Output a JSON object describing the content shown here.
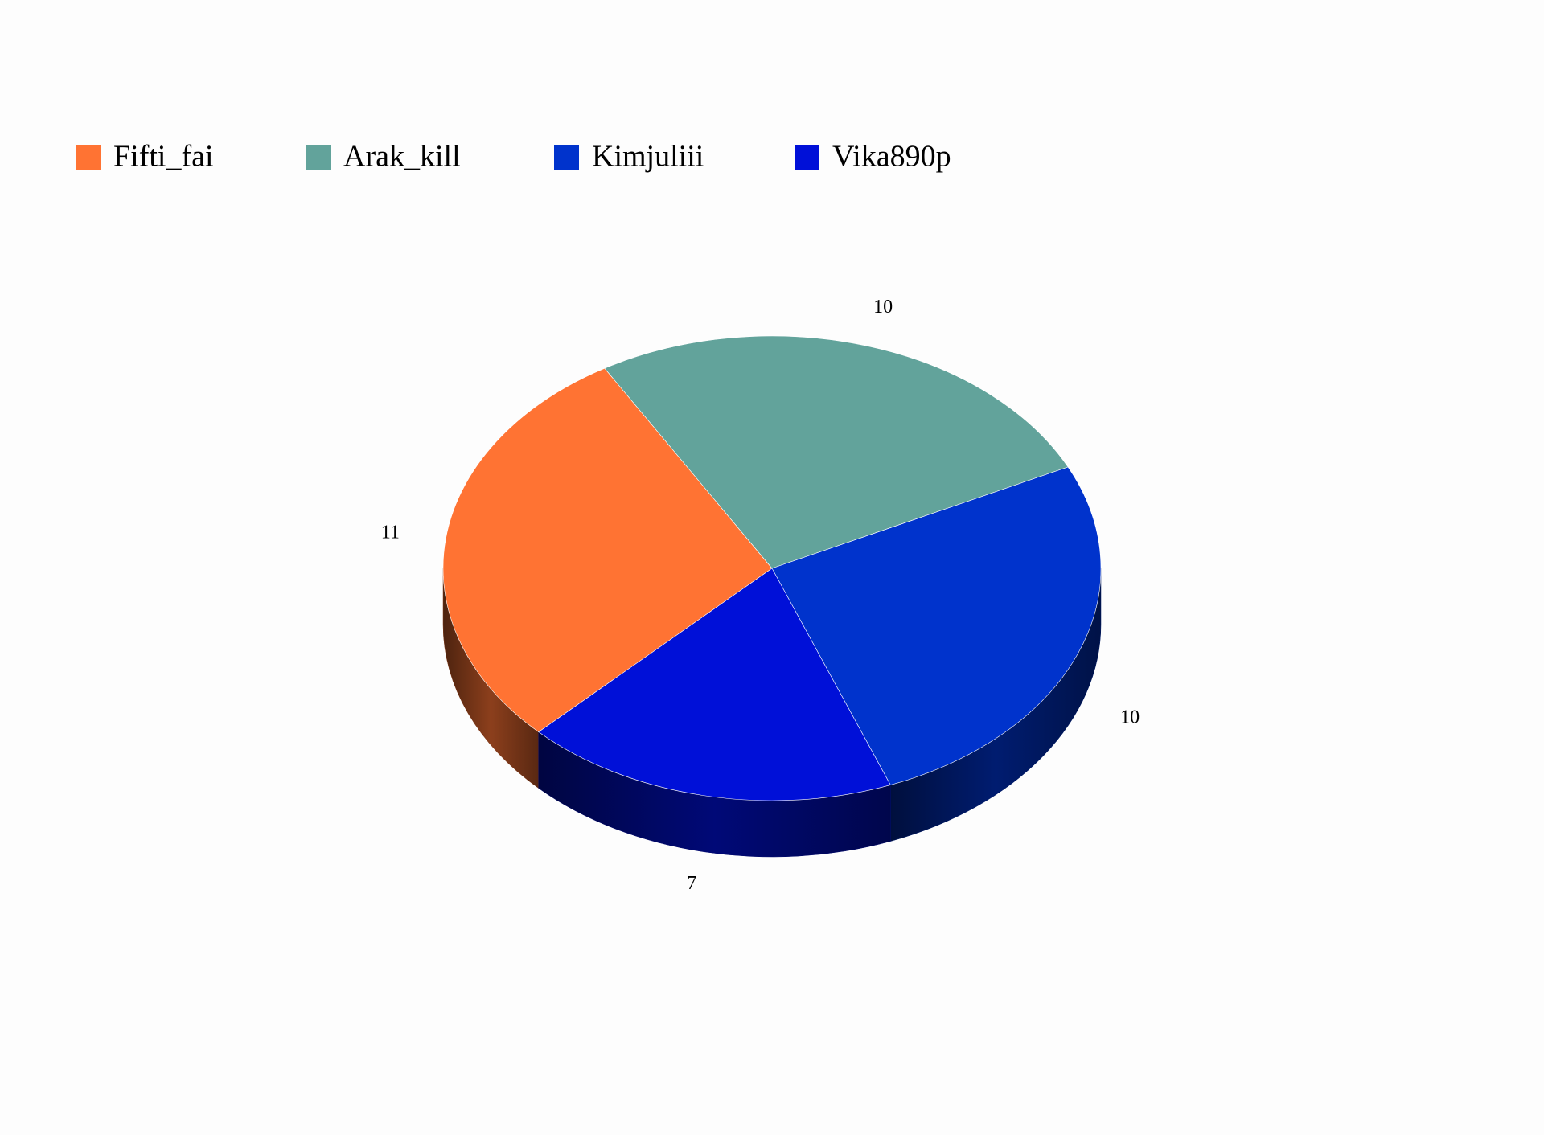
{
  "chart_data": {
    "type": "pie",
    "categories": [
      "Fifti_fai",
      "Arak_kill",
      "Kimjuliii",
      "Vika890p"
    ],
    "values": [
      11,
      10,
      10,
      7
    ],
    "colors": [
      "#ff7333",
      "#62a39b",
      "#0033cc",
      "#0010d8"
    ],
    "legend": "top-left"
  }
}
